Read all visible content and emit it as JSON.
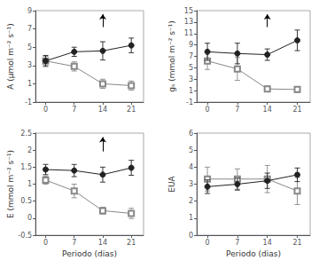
{
  "chart_data": [
    {
      "type": "line",
      "ylabel": "A (μmol m⁻² s⁻¹)",
      "x": [
        0,
        7,
        14,
        21
      ],
      "xlim": [
        -2.5,
        24
      ],
      "xticks": [
        0,
        7,
        14,
        21
      ],
      "ylim": [
        -1,
        9
      ],
      "yticks": [
        -1,
        1,
        3,
        5,
        7,
        9
      ],
      "grid": false,
      "annotations": [
        {
          "type": "arrow",
          "x": 14
        }
      ],
      "series": [
        {
          "color": "#888888",
          "marker": "open_square",
          "values": [
            3.5,
            2.9,
            1.0,
            0.8
          ],
          "errors": [
            0.5,
            0.5,
            0.5,
            0.5
          ]
        },
        {
          "color": "#222222",
          "marker": "circle",
          "values": [
            3.5,
            4.5,
            4.6,
            5.2
          ],
          "errors": [
            0.6,
            0.5,
            1.0,
            0.8
          ]
        }
      ]
    },
    {
      "type": "line",
      "ylabel": "gₛ (mmol m⁻² s⁻¹)",
      "x": [
        0,
        7,
        14,
        21
      ],
      "xlim": [
        -2.5,
        24
      ],
      "xticks": [
        0,
        7,
        14,
        21
      ],
      "ylim": [
        -1,
        15
      ],
      "yticks": [
        -1,
        1,
        3,
        5,
        7,
        9,
        11,
        13,
        15
      ],
      "grid": false,
      "annotations": [
        {
          "type": "arrow",
          "x": 14
        }
      ],
      "series": [
        {
          "color": "#888888",
          "marker": "open_square",
          "values": [
            6.2,
            4.8,
            1.3,
            1.2
          ],
          "errors": [
            1.5,
            2.0,
            0.5,
            0.5
          ]
        },
        {
          "color": "#222222",
          "marker": "circle",
          "values": [
            7.8,
            7.5,
            7.3,
            9.8
          ],
          "errors": [
            1.5,
            1.8,
            1.0,
            1.8
          ]
        }
      ]
    },
    {
      "type": "line",
      "ylabel": "E (mmol m⁻² s⁻¹)",
      "xlabel": "Periodo (dias)",
      "x": [
        0,
        7,
        14,
        21
      ],
      "xlim": [
        -2.5,
        24
      ],
      "xticks": [
        0,
        7,
        14,
        21
      ],
      "ylim": [
        -0.5,
        2.5
      ],
      "yticks": [
        -0.5,
        0,
        0.5,
        1,
        1.5,
        2,
        2.5
      ],
      "grid": false,
      "annotations": [
        {
          "type": "arrow",
          "x": 14
        }
      ],
      "series": [
        {
          "color": "#888888",
          "marker": "open_square",
          "values": [
            1.12,
            0.8,
            0.22,
            0.14
          ],
          "errors": [
            0.12,
            0.2,
            0.1,
            0.15
          ]
        },
        {
          "color": "#222222",
          "marker": "circle",
          "values": [
            1.43,
            1.4,
            1.28,
            1.48
          ],
          "errors": [
            0.15,
            0.18,
            0.22,
            0.22
          ]
        }
      ]
    },
    {
      "type": "line",
      "ylabel": "EUA",
      "xlabel": "Periodo (dias)",
      "x": [
        0,
        7,
        14,
        21
      ],
      "xlim": [
        -2.5,
        24
      ],
      "xticks": [
        0,
        7,
        14,
        21
      ],
      "ylim": [
        0,
        6
      ],
      "yticks": [
        0,
        1,
        2,
        3,
        4,
        5,
        6
      ],
      "grid": false,
      "series": [
        {
          "color": "#888888",
          "marker": "open_square",
          "values": [
            3.3,
            3.3,
            3.3,
            2.6
          ],
          "errors": [
            0.7,
            0.6,
            0.8,
            0.8
          ]
        },
        {
          "color": "#222222",
          "marker": "circle",
          "values": [
            2.85,
            3.0,
            3.2,
            3.55
          ],
          "errors": [
            0.4,
            0.35,
            0.45,
            0.4
          ]
        }
      ]
    }
  ]
}
